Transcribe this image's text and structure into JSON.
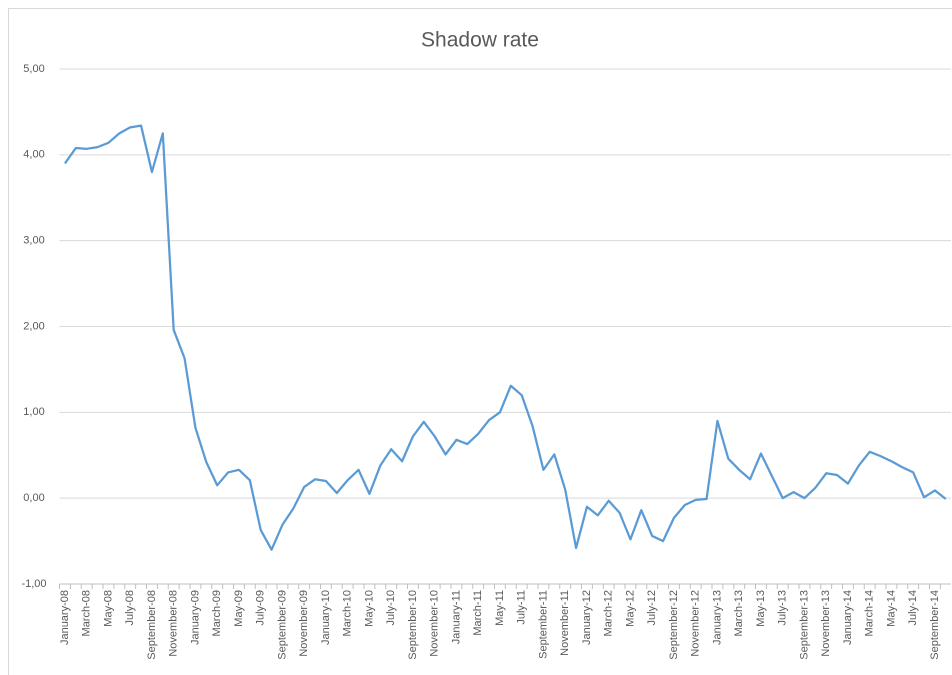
{
  "chart_data": {
    "type": "line",
    "title": "Shadow rate",
    "categories": [
      "January-08",
      null,
      "March-08",
      null,
      "May-08",
      null,
      "July-08",
      null,
      "September-08",
      null,
      "November-08",
      null,
      "January-09",
      null,
      "March-09",
      null,
      "May-09",
      null,
      "July-09",
      null,
      "September-09",
      null,
      "November-09",
      null,
      "January-10",
      null,
      "March-10",
      null,
      "May-10",
      null,
      "July-10",
      null,
      "September-10",
      null,
      "November-10",
      null,
      "January-11",
      null,
      "March-11",
      null,
      "May-11",
      null,
      "July-11",
      null,
      "September-11",
      null,
      "November-11",
      null,
      "January-12",
      null,
      "March-12",
      null,
      "May-12",
      null,
      "July-12",
      null,
      "September-12",
      null,
      "November-12",
      null,
      "January-13",
      null,
      "March-13",
      null,
      "May-13",
      null,
      "July-13",
      null,
      "September-13",
      null,
      "November-13",
      null,
      "January-14",
      null,
      "March-14",
      null,
      "May-14",
      null,
      "July-14",
      null,
      "September-14",
      null
    ],
    "series": [
      {
        "name": "Shadow rate",
        "color": "#5b9bd5",
        "values": [
          3.9,
          4.08,
          4.07,
          4.09,
          4.14,
          4.25,
          4.32,
          4.34,
          3.8,
          4.25,
          1.96,
          1.63,
          0.82,
          0.42,
          0.15,
          0.3,
          0.33,
          0.21,
          -0.37,
          -0.6,
          -0.31,
          -0.12,
          0.13,
          0.22,
          0.2,
          0.06,
          0.21,
          0.33,
          0.05,
          0.38,
          0.57,
          0.43,
          0.72,
          0.89,
          0.72,
          0.51,
          0.68,
          0.63,
          0.75,
          0.91,
          1.0,
          1.31,
          1.2,
          0.84,
          0.33,
          0.51,
          0.1,
          -0.58,
          -0.1,
          -0.2,
          -0.03,
          -0.17,
          -0.48,
          -0.14,
          -0.44,
          -0.5,
          -0.23,
          -0.08,
          -0.02,
          -0.01,
          0.9,
          0.46,
          0.33,
          0.22,
          0.52,
          0.26,
          0.0,
          0.07,
          0.0,
          0.12,
          0.29,
          0.27,
          0.17,
          0.38,
          0.54,
          0.49,
          0.43,
          0.36,
          0.3,
          0.01,
          0.09,
          -0.01
        ]
      }
    ],
    "ylim": [
      -1,
      5
    ],
    "yticks": [
      {
        "value": -1,
        "label": "-1,00"
      },
      {
        "value": 0,
        "label": "0,00"
      },
      {
        "value": 1,
        "label": "1,00"
      },
      {
        "value": 2,
        "label": "2,00"
      },
      {
        "value": 3,
        "label": "3,00"
      },
      {
        "value": 4,
        "label": "4,00"
      },
      {
        "value": 5,
        "label": "5,00"
      }
    ],
    "grid": true
  }
}
